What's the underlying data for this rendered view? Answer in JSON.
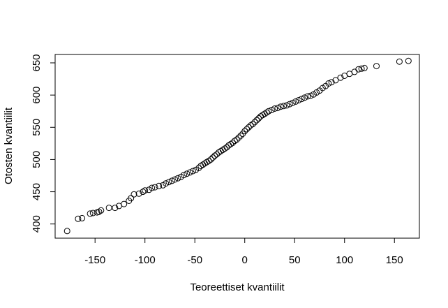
{
  "chart_data": {
    "type": "scatter",
    "title": "",
    "xlabel": "Teoreettiset kvantiilit",
    "ylabel": "Otosten kvantiilit",
    "xlim": [
      -190,
      175
    ],
    "ylim": [
      378,
      663
    ],
    "xticks": [
      -150,
      -100,
      -50,
      0,
      50,
      100,
      150
    ],
    "xtick_labels": [
      "-150",
      "-100",
      "-50",
      "0",
      "50",
      "100",
      "150"
    ],
    "yticks": [
      400,
      450,
      500,
      550,
      600,
      650
    ],
    "ytick_labels": [
      "400",
      "450",
      "500",
      "550",
      "600",
      "650"
    ],
    "grid": false,
    "marker": "open-circle",
    "series": [
      {
        "name": "",
        "points": [
          [
            -178,
            389
          ],
          [
            -167,
            408
          ],
          [
            -163,
            409
          ],
          [
            -155,
            416
          ],
          [
            -152,
            417
          ],
          [
            -148,
            418
          ],
          [
            -146,
            419
          ],
          [
            -144,
            421
          ],
          [
            -136,
            425
          ],
          [
            -130,
            425
          ],
          [
            -126,
            428
          ],
          [
            -121,
            431
          ],
          [
            -116,
            436
          ],
          [
            -114,
            440
          ],
          [
            -111,
            446
          ],
          [
            -106,
            447
          ],
          [
            -102,
            450
          ],
          [
            -100,
            452
          ],
          [
            -96,
            453
          ],
          [
            -93,
            456
          ],
          [
            -90,
            457
          ],
          [
            -86,
            459
          ],
          [
            -82,
            460
          ],
          [
            -79,
            463
          ],
          [
            -76,
            465
          ],
          [
            -73,
            467
          ],
          [
            -70,
            469
          ],
          [
            -67,
            471
          ],
          [
            -64,
            473
          ],
          [
            -61,
            476
          ],
          [
            -58,
            478
          ],
          [
            -55,
            480
          ],
          [
            -52,
            482
          ],
          [
            -49,
            484
          ],
          [
            -46,
            487
          ],
          [
            -44,
            490
          ],
          [
            -42,
            492
          ],
          [
            -40,
            494
          ],
          [
            -38,
            496
          ],
          [
            -36,
            498
          ],
          [
            -34,
            500
          ],
          [
            -32,
            503
          ],
          [
            -30,
            506
          ],
          [
            -28,
            508
          ],
          [
            -26,
            511
          ],
          [
            -24,
            513
          ],
          [
            -22,
            515
          ],
          [
            -20,
            517
          ],
          [
            -18,
            519
          ],
          [
            -16,
            522
          ],
          [
            -14,
            524
          ],
          [
            -12,
            526
          ],
          [
            -10,
            529
          ],
          [
            -8,
            531
          ],
          [
            -6,
            534
          ],
          [
            -4,
            537
          ],
          [
            -2,
            540
          ],
          [
            0,
            544
          ],
          [
            2,
            547
          ],
          [
            4,
            550
          ],
          [
            6,
            553
          ],
          [
            8,
            555
          ],
          [
            10,
            558
          ],
          [
            12,
            561
          ],
          [
            14,
            564
          ],
          [
            16,
            567
          ],
          [
            18,
            569
          ],
          [
            20,
            571
          ],
          [
            22,
            573
          ],
          [
            24,
            575
          ],
          [
            27,
            577
          ],
          [
            30,
            579
          ],
          [
            33,
            580
          ],
          [
            36,
            582
          ],
          [
            39,
            583
          ],
          [
            42,
            584
          ],
          [
            45,
            586
          ],
          [
            48,
            588
          ],
          [
            51,
            590
          ],
          [
            54,
            592
          ],
          [
            57,
            594
          ],
          [
            60,
            596
          ],
          [
            63,
            598
          ],
          [
            66,
            599
          ],
          [
            69,
            601
          ],
          [
            72,
            604
          ],
          [
            75,
            607
          ],
          [
            78,
            611
          ],
          [
            81,
            614
          ],
          [
            84,
            618
          ],
          [
            87,
            620
          ],
          [
            91,
            623
          ],
          [
            96,
            627
          ],
          [
            100,
            630
          ],
          [
            105,
            633
          ],
          [
            110,
            636
          ],
          [
            114,
            640
          ],
          [
            117,
            641
          ],
          [
            120,
            642
          ],
          [
            132,
            645
          ],
          [
            155,
            652
          ],
          [
            164,
            653
          ]
        ]
      }
    ]
  }
}
